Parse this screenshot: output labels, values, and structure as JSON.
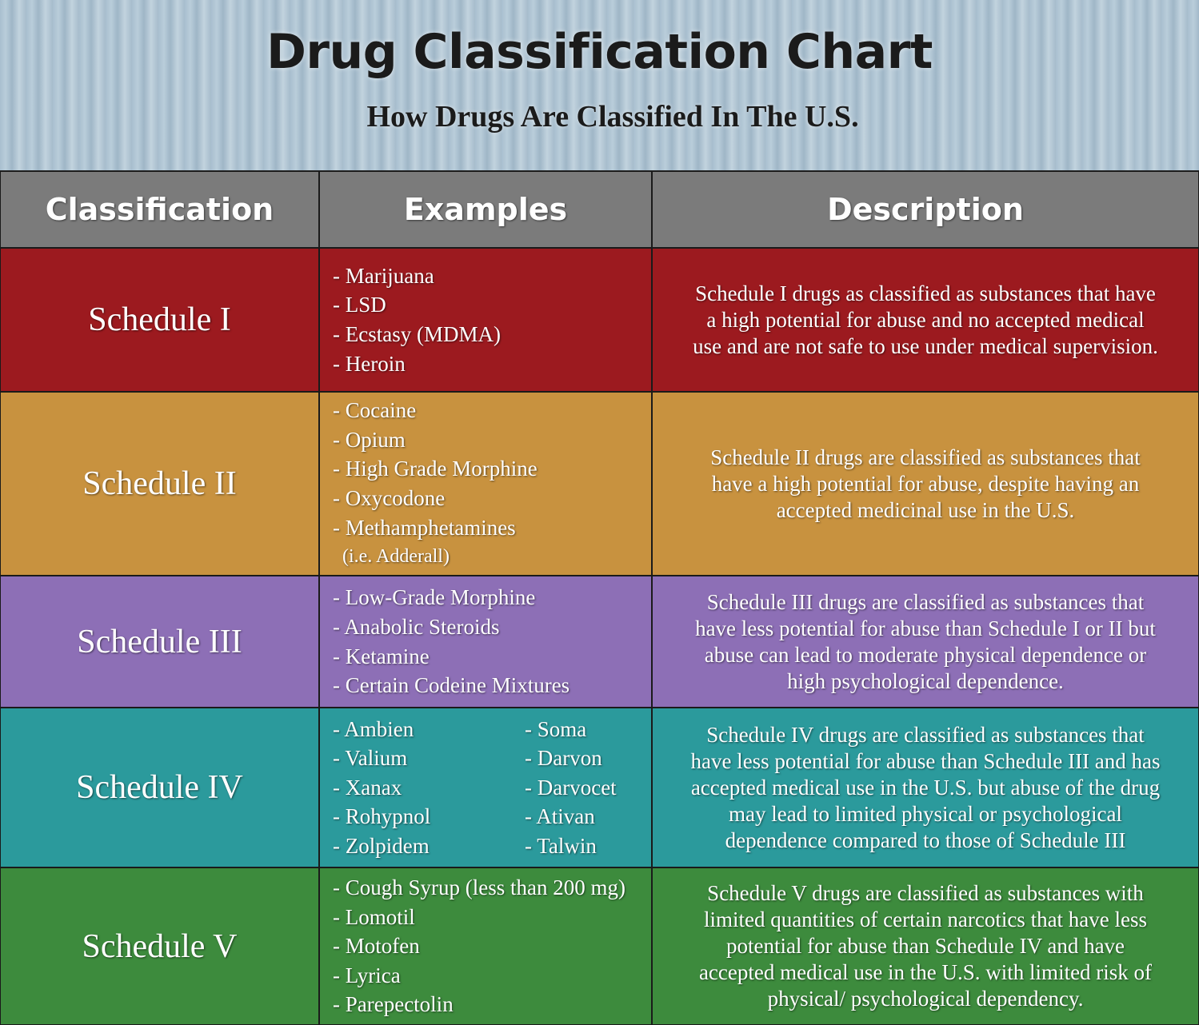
{
  "header": {
    "title": "Drug Classification Chart",
    "subtitle": "How Drugs Are Classified In The U.S."
  },
  "table": {
    "columns": [
      "Classification",
      "Examples",
      "Description"
    ],
    "rows": [
      {
        "classification": "Schedule I",
        "color": "#9c1a1f",
        "examples": [
          [
            "- Marijuana",
            "- LSD",
            "- Ecstasy (MDMA)",
            "- Heroin"
          ]
        ],
        "description": [
          "Schedule I drugs as classified as substances that have",
          "a high potential for abuse and no accepted medical",
          "use and are not safe to use under medical supervision."
        ]
      },
      {
        "classification": "Schedule II",
        "color": "#c8923f",
        "examples": [
          [
            "- Cocaine",
            "- Opium",
            "- High Grade Morphine",
            "- Oxycodone",
            "- Methamphetamines",
            "(i.e. Adderall)"
          ]
        ],
        "description": [
          "Schedule II drugs are classified as substances that",
          "have a high potential for abuse, despite having an",
          "accepted medicinal use in the U.S."
        ]
      },
      {
        "classification": "Schedule III",
        "color": "#8d6fb6",
        "examples": [
          [
            "- Low-Grade Morphine",
            "- Anabolic Steroids",
            "- Ketamine",
            "- Certain Codeine Mixtures"
          ]
        ],
        "description": [
          "Schedule III drugs are classified as substances that",
          "have less potential for abuse than Schedule I or II but",
          "abuse can lead to moderate physical dependence or",
          "high psychological dependence."
        ]
      },
      {
        "classification": "Schedule IV",
        "color": "#2b9a9c",
        "examples": [
          [
            "- Ambien",
            "- Valium",
            "- Xanax",
            "- Rohypnol",
            "- Zolpidem"
          ],
          [
            "- Soma",
            "- Darvon",
            "- Darvocet",
            "- Ativan",
            "- Talwin"
          ]
        ],
        "description": [
          "Schedule IV drugs are classified as substances that",
          "have less potential for abuse than Schedule III and has",
          "accepted medical use in the U.S. but abuse of the drug",
          "may lead to limited physical or psychological",
          "dependence compared to those of Schedule III"
        ]
      },
      {
        "classification": "Schedule V",
        "color": "#3d8b3d",
        "examples": [
          [
            "- Cough Syrup (less than 200 mg)",
            "- Lomotil",
            "- Motofen",
            "- Lyrica",
            "- Parepectolin"
          ]
        ],
        "description": [
          "Schedule V drugs are classified as substances with",
          "limited quantities of certain narcotics  that have less",
          "potential for abuse than Schedule IV and have",
          "accepted medical use in the U.S. with limited risk of",
          "physical/ psychological dependency."
        ]
      }
    ]
  }
}
